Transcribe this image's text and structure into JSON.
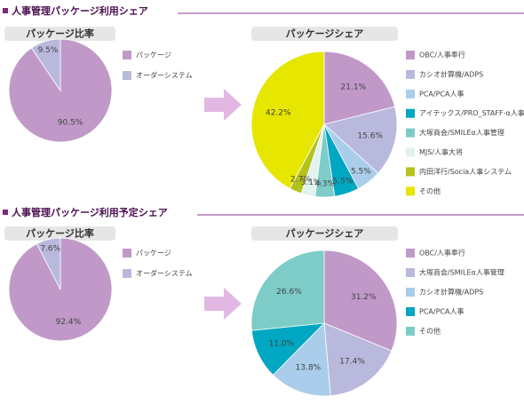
{
  "headings": [
    "人事管理パッケージ利用シェア",
    "人事管理パッケージ利用予定シェア"
  ],
  "chart_data": [
    {
      "type": "pie",
      "title": "パッケージ比率",
      "categories": [
        "パッケージ",
        "オーダーシステム"
      ],
      "values": [
        90.5,
        9.5
      ],
      "value_labels": [
        "90.5%",
        "9.5%"
      ],
      "colors": [
        "#c099c9",
        "#b9b9de"
      ]
    },
    {
      "type": "pie",
      "title": "パッケージシェア",
      "categories": [
        "OBC/人事奉行",
        "カシオ計算機/ADPS",
        "PCA/PCA人事",
        "アイテックス/PRO_STAFF-α人事",
        "大塚商会/SMILEα人事管理",
        "MJS/人事大将",
        "内田洋行/Socia人事システム",
        "その他"
      ],
      "values": [
        21.1,
        15.6,
        5.5,
        5.5,
        4.3,
        3.1,
        2.7,
        42.2
      ],
      "value_labels": [
        "21.1%",
        "15.6%",
        "5.5%",
        "5.5%",
        "4.3%",
        "3.1%",
        "2.7%",
        "42.2%"
      ],
      "colors": [
        "#c099c9",
        "#b9b9de",
        "#a9cdea",
        "#00a7c2",
        "#7dccc8",
        "#e2f2ef",
        "#b4c21e",
        "#e6e600"
      ]
    },
    {
      "type": "pie",
      "title": "パッケージ比率",
      "categories": [
        "パッケージ",
        "オーダーシステム"
      ],
      "values": [
        92.4,
        7.6
      ],
      "value_labels": [
        "92.4%",
        "7.6%"
      ],
      "colors": [
        "#c099c9",
        "#b9b9de"
      ]
    },
    {
      "type": "pie",
      "title": "パッケージシェア",
      "categories": [
        "OBC/人事奉行",
        "大塚商会/SMILEα人事管理",
        "カシオ計算機/ADPS",
        "PCA/PCA人事",
        "その他"
      ],
      "values": [
        31.2,
        17.4,
        13.8,
        11,
        26.6
      ],
      "value_labels": [
        "31.2%",
        "17.4%",
        "13.8%",
        "11.0%",
        "26.6%"
      ],
      "colors": [
        "#c099c9",
        "#b9b9de",
        "#a9cdea",
        "#00a7c2",
        "#7dccc8"
      ]
    }
  ]
}
